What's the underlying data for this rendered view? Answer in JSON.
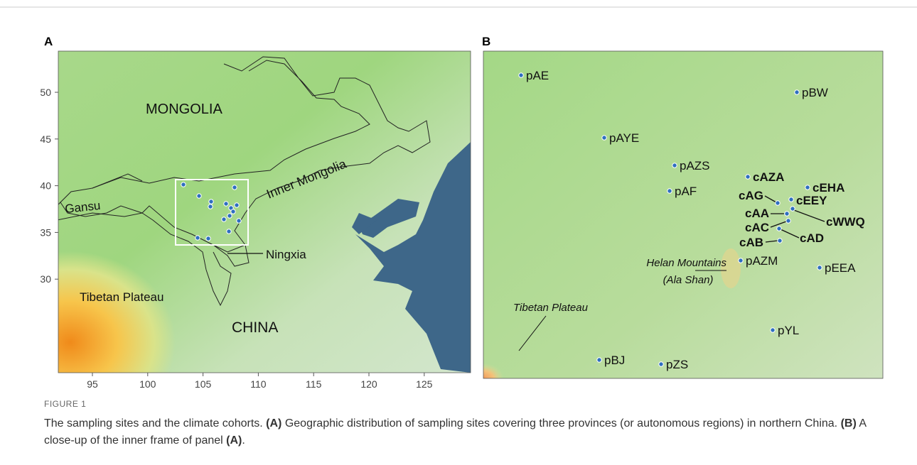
{
  "panel_a": {
    "label": "A",
    "xticks": [
      95,
      100,
      105,
      110,
      115,
      120,
      125
    ],
    "yticks": [
      50,
      45,
      40,
      35,
      30
    ],
    "regions": {
      "mongolia": "MONGOLIA",
      "inner_mongolia": "Inner Mongolia",
      "gansu": "Gansu",
      "ningxia": "Ningxia",
      "tibetan_plateau": "Tibetan Plateau",
      "china": "CHINA"
    }
  },
  "panel_b": {
    "label": "B",
    "sites": [
      "pAE",
      "pBW",
      "pAYE",
      "pAZS",
      "pAF",
      "pAZM",
      "pEEA",
      "pYL",
      "pBJ",
      "pZS"
    ],
    "cohorts": [
      "cAZA",
      "cEHA",
      "cAG",
      "cEEY",
      "cAA",
      "cWWQ",
      "cAC",
      "cAD",
      "cAB"
    ],
    "helan": "Helan Mountains",
    "ala_shan": "(Ala Shan)",
    "tibetan_plateau": "Tibetan Plateau"
  },
  "caption": {
    "figure": "FIGURE 1",
    "title": "The sampling sites and the climate cohorts.",
    "body": [
      {
        "text": "(A)",
        "bold": true
      },
      {
        "text": " Geographic distribution of sampling sites covering three provinces (or autonomous regions) in northern China. ",
        "bold": false
      },
      {
        "text": "(B)",
        "bold": true
      },
      {
        "text": " A close-up of the inner frame of panel ",
        "bold": false
      },
      {
        "text": "(A)",
        "bold": true
      },
      {
        "text": ".",
        "bold": false
      }
    ]
  }
}
